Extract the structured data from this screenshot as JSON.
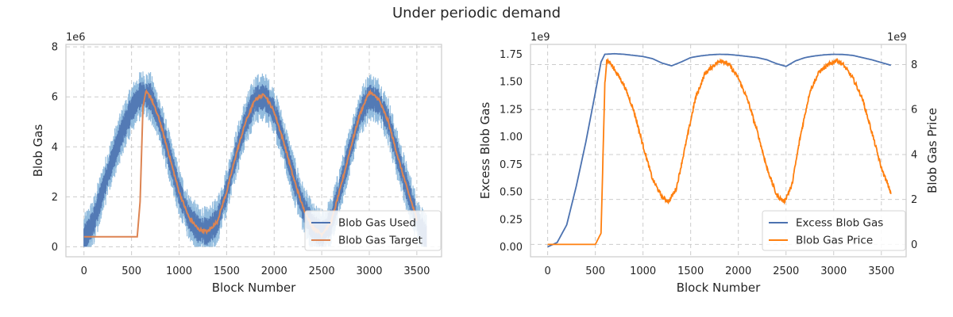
{
  "figure": {
    "suptitle": "Under periodic demand"
  },
  "colors": {
    "blue": "#4c72b0",
    "blue_light": "#7fb0d8",
    "orange_muted": "#dd8452",
    "orange": "#ff7f0e",
    "grid": "#cccccc",
    "spine": "#cccccc"
  },
  "chart_data": [
    {
      "type": "line",
      "title": "",
      "xlabel": "Block Number",
      "ylabel": "Blob Gas",
      "offset_text": "1e6",
      "xlim": [
        -190,
        3760
      ],
      "ylim": [
        -0.4,
        8.1
      ],
      "xticks": [
        0,
        500,
        1000,
        1500,
        2000,
        2500,
        3000,
        3500
      ],
      "xtick_labels": [
        "0",
        "500",
        "1000",
        "1500",
        "2000",
        "2500",
        "3000",
        "3500"
      ],
      "yticks": [
        0,
        2,
        4,
        6,
        8
      ],
      "ytick_labels": [
        "0",
        "2",
        "4",
        "6",
        "8"
      ],
      "legend_position": "lower-right",
      "series": [
        {
          "name": "Blob Gas Used",
          "color_key": "blue",
          "band_color_key": "blue_light",
          "x": [
            0,
            100,
            200,
            300,
            400,
            500,
            600,
            700,
            800,
            900,
            1000,
            1100,
            1200,
            1300,
            1400,
            1500,
            1600,
            1700,
            1800,
            1900,
            2000,
            2100,
            2200,
            2300,
            2400,
            2500,
            2600,
            2700,
            2800,
            2900,
            3000,
            3100,
            3200,
            3300,
            3400,
            3500,
            3600
          ],
          "values": [
            0.3,
            1.0,
            2.3,
            3.5,
            4.6,
            5.5,
            6.1,
            6.0,
            5.0,
            3.6,
            2.2,
            1.2,
            0.7,
            0.6,
            1.0,
            2.2,
            3.7,
            5.0,
            5.9,
            6.0,
            5.4,
            4.2,
            2.8,
            1.6,
            0.8,
            0.5,
            1.0,
            2.4,
            3.9,
            5.3,
            6.0,
            5.8,
            5.0,
            3.6,
            2.3,
            1.1,
            0.3
          ],
          "band_halfwidth": 1.0
        },
        {
          "name": "Blob Gas Target",
          "color_key": "orange_muted",
          "x": [
            0,
            560,
            590,
            620,
            650,
            700,
            800,
            900,
            1000,
            1100,
            1200,
            1300,
            1400,
            1500,
            1600,
            1700,
            1800,
            1900,
            2000,
            2100,
            2200,
            2300,
            2400,
            2500,
            2600,
            2700,
            2800,
            2900,
            3000,
            3100,
            3200,
            3300,
            3400,
            3500
          ],
          "values": [
            0.4,
            0.4,
            1.8,
            5.6,
            6.2,
            6.0,
            5.0,
            3.6,
            2.2,
            1.2,
            0.7,
            0.6,
            1.0,
            2.2,
            3.7,
            5.0,
            5.9,
            6.1,
            5.4,
            4.2,
            2.8,
            1.6,
            0.8,
            0.5,
            1.0,
            2.4,
            3.9,
            5.3,
            6.2,
            5.9,
            5.0,
            3.6,
            2.3,
            1.1
          ]
        }
      ]
    },
    {
      "type": "line",
      "title": "",
      "xlabel": "Block Number",
      "ylabel": "Excess Blob Gas",
      "y2label": "Blob Gas Price",
      "offset_text": "1e9",
      "y2_offset_text": "1e9",
      "xlim": [
        -180,
        3760
      ],
      "ylim": [
        -0.09,
        1.84
      ],
      "y2lim": [
        -0.55,
        8.9
      ],
      "xticks": [
        0,
        500,
        1000,
        1500,
        2000,
        2500,
        3000,
        3500
      ],
      "xtick_labels": [
        "0",
        "500",
        "1000",
        "1500",
        "2000",
        "2500",
        "3000",
        "3500"
      ],
      "yticks": [
        0,
        0.25,
        0.5,
        0.75,
        1.0,
        1.25,
        1.5,
        1.75
      ],
      "ytick_labels": [
        "0.00",
        "0.25",
        "0.50",
        "0.75",
        "1.00",
        "1.25",
        "1.50",
        "1.75"
      ],
      "y2ticks": [
        0,
        2,
        4,
        6,
        8
      ],
      "y2tick_labels": [
        "0",
        "2",
        "4",
        "6",
        "8"
      ],
      "legend_position": "lower-right",
      "series": [
        {
          "name": "Excess Blob Gas",
          "axis": "left",
          "color_key": "blue",
          "x": [
            0,
            100,
            200,
            300,
            400,
            500,
            560,
            600,
            700,
            800,
            900,
            1000,
            1100,
            1200,
            1300,
            1400,
            1500,
            1600,
            1700,
            1800,
            1900,
            2000,
            2100,
            2200,
            2300,
            2400,
            2500,
            2600,
            2700,
            2800,
            2900,
            3000,
            3100,
            3200,
            3300,
            3400,
            3500,
            3600
          ],
          "values": [
            0.0,
            0.04,
            0.2,
            0.55,
            0.95,
            1.4,
            1.68,
            1.75,
            1.755,
            1.75,
            1.74,
            1.73,
            1.71,
            1.67,
            1.645,
            1.68,
            1.72,
            1.735,
            1.745,
            1.75,
            1.748,
            1.74,
            1.73,
            1.72,
            1.7,
            1.665,
            1.64,
            1.69,
            1.72,
            1.735,
            1.745,
            1.75,
            1.748,
            1.74,
            1.72,
            1.7,
            1.675,
            1.65
          ]
        },
        {
          "name": "Blob Gas Price",
          "axis": "right",
          "color_key": "orange",
          "x": [
            0,
            500,
            560,
            600,
            620,
            650,
            700,
            800,
            900,
            1000,
            1100,
            1200,
            1270,
            1350,
            1450,
            1550,
            1650,
            1750,
            1820,
            1900,
            2000,
            2100,
            2200,
            2300,
            2400,
            2480,
            2560,
            2650,
            2750,
            2850,
            2950,
            3030,
            3100,
            3200,
            3300,
            3400,
            3500,
            3600
          ],
          "values": [
            0.0,
            0.0,
            0.5,
            7.2,
            8.2,
            8.1,
            7.8,
            7.1,
            6.0,
            4.4,
            2.9,
            2.1,
            1.9,
            2.5,
            4.5,
            6.5,
            7.6,
            8.0,
            8.2,
            8.0,
            7.4,
            6.4,
            5.0,
            3.4,
            2.2,
            1.9,
            2.6,
            4.8,
            6.8,
            7.7,
            8.0,
            8.2,
            8.0,
            7.4,
            6.5,
            5.0,
            3.4,
            2.3
          ]
        }
      ]
    }
  ]
}
